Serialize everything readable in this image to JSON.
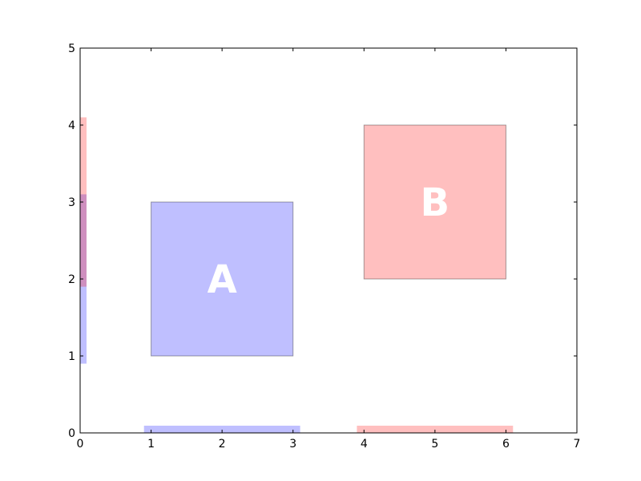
{
  "chart_data": {
    "type": "rectangles",
    "title": "",
    "xlabel": "",
    "ylabel": "",
    "xlim": [
      0,
      7
    ],
    "ylim": [
      0,
      5
    ],
    "x_ticks": [
      "0",
      "1",
      "2",
      "3",
      "4",
      "5",
      "6",
      "7"
    ],
    "y_ticks": [
      "0",
      "1",
      "2",
      "3",
      "4",
      "5"
    ],
    "grid": false,
    "rectangles": [
      {
        "label": "A",
        "x": [
          1,
          3
        ],
        "y": [
          1,
          3
        ],
        "color": "#0000ff"
      },
      {
        "label": "B",
        "x": [
          4,
          6
        ],
        "y": [
          2,
          4
        ],
        "color": "#ff0000"
      }
    ],
    "x_extent_markers": [
      {
        "range": [
          0.9,
          3.1
        ],
        "color": "#0000ff"
      },
      {
        "range": [
          3.9,
          6.1
        ],
        "color": "#ff0000"
      }
    ],
    "y_extent_markers": [
      {
        "range": [
          0.9,
          3.1
        ],
        "color": "#0000ff"
      },
      {
        "range": [
          1.9,
          4.1
        ],
        "color": "#ff0000"
      }
    ]
  }
}
